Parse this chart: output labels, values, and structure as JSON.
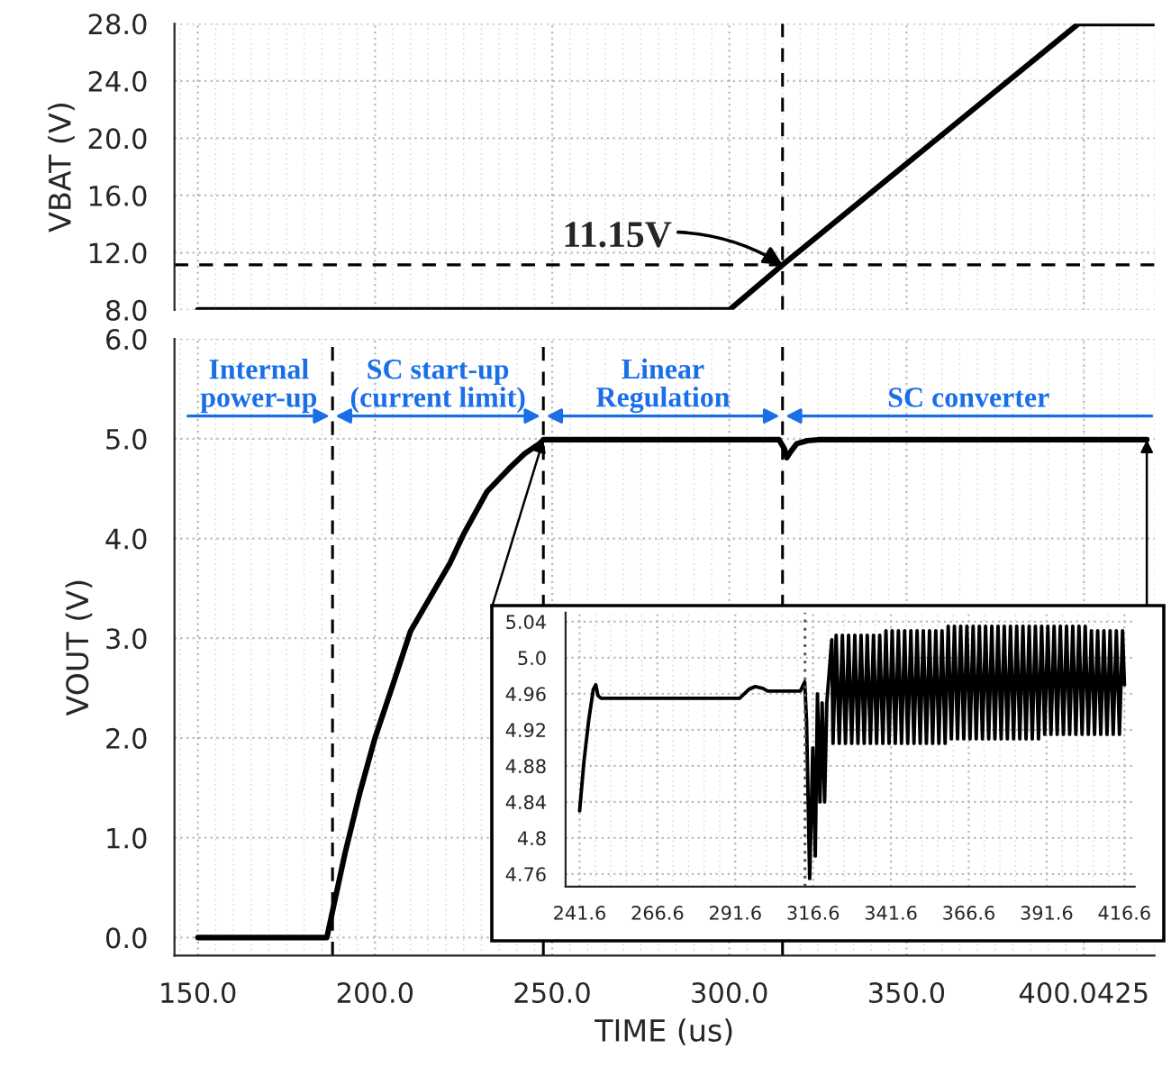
{
  "chart_data": [
    {
      "type": "line",
      "ylabel": "VBAT (V)",
      "tick_labels": "y",
      "grid": true,
      "line_style": "solid",
      "xlim": [
        143.4,
        420
      ],
      "xticks": [
        150,
        200,
        250,
        300,
        350,
        400.0425
      ],
      "ylim": [
        8,
        28
      ],
      "yticks": [
        {
          "value": 8,
          "label": "8.0"
        },
        {
          "value": 12,
          "label": "12.0"
        },
        {
          "value": 16,
          "label": "16.0"
        },
        {
          "value": 20,
          "label": "20.0"
        },
        {
          "value": 24,
          "label": "24.0"
        },
        {
          "value": 28,
          "label": "28.0"
        }
      ],
      "series": [
        {
          "color": "#000000",
          "x": [
            150,
            300,
            315,
            398.5,
            420
          ],
          "values": [
            8,
            8,
            11.15,
            28,
            28
          ]
        }
      ],
      "ref_lines": [
        {
          "axis": "x",
          "value": 315,
          "color": "#000000",
          "line_style": "dashed"
        },
        {
          "axis": "y",
          "value": 11.15,
          "color": "#000000",
          "line_style": "dashed"
        }
      ],
      "annotations": [
        {
          "text": "11.15V",
          "x": 315,
          "y": 11.15
        }
      ]
    },
    {
      "type": "line",
      "xlabel": "TIME (us)",
      "ylabel": "VOUT (V)",
      "grid": true,
      "line_style": "solid",
      "xlim": [
        143.4,
        420
      ],
      "xticks": [
        {
          "value": 150,
          "label": "150.0"
        },
        {
          "value": 200,
          "label": "200.0"
        },
        {
          "value": 250,
          "label": "250.0"
        },
        {
          "value": 300,
          "label": "300.0"
        },
        {
          "value": 350,
          "label": "350.0"
        },
        {
          "value": 400.0425,
          "label": "400.0425"
        }
      ],
      "ylim": [
        -0.18,
        6
      ],
      "yticks": [
        {
          "value": 0,
          "label": "0.0"
        },
        {
          "value": 1,
          "label": "1.0"
        },
        {
          "value": 2,
          "label": "2.0"
        },
        {
          "value": 3,
          "label": "3.0"
        },
        {
          "value": 4,
          "label": "4.0"
        },
        {
          "value": 5,
          "label": "5.0"
        },
        {
          "value": 6,
          "label": "6.0"
        }
      ],
      "series": [
        {
          "color": "#000000",
          "x": [
            150,
            186.4,
            191.5,
            195.7,
            199.9,
            205,
            210,
            221.1,
            225.1,
            231.6,
            237.8,
            242.2,
            246.4,
            247.5,
            314,
            315.5,
            316.2,
            317.5,
            319,
            322,
            325,
            417.8
          ],
          "values": [
            0,
            0,
            0.84,
            1.45,
            1.99,
            2.53,
            3.07,
            3.75,
            4.05,
            4.47,
            4.7,
            4.85,
            4.95,
            4.99,
            4.99,
            4.9,
            4.81,
            4.88,
            4.95,
            4.98,
            4.99,
            4.99
          ]
        }
      ],
      "ref_lines": [
        {
          "axis": "x",
          "value": 188,
          "color": "#000000",
          "line_style": "dashed"
        },
        {
          "axis": "x",
          "value": 247.5,
          "color": "#000000",
          "line_style": "dashed"
        },
        {
          "axis": "x",
          "value": 315,
          "color": "#000000",
          "line_style": "dashed"
        }
      ],
      "annotations": [
        "Internal\npower-up",
        "SC start-up\n(current limit)",
        "Linear\nRegulation",
        "SC converter"
      ]
    },
    {
      "type": "line",
      "grid": true,
      "line_style": "solid",
      "xlim": [
        237.1,
        419.9
      ],
      "xticks": [
        241.6,
        266.6,
        291.6,
        316.6,
        341.6,
        366.6,
        391.6,
        416.6
      ],
      "ylim": [
        4.746,
        5.05
      ],
      "yticks": [
        4.76,
        {
          "value": 4.8,
          "label": "4.8"
        },
        4.84,
        4.88,
        4.92,
        4.96,
        {
          "value": 5.0,
          "label": "5.0"
        },
        5.04
      ],
      "series": [
        {
          "color": "#000000",
          "x": [
            241.6,
            243,
            244.5,
            246,
            246.8,
            247.5,
            248.5,
            293,
            296,
            298,
            300.5,
            302,
            312.5,
            313.9,
            314.5,
            315.5,
            316.5,
            317.3,
            318,
            318.8,
            319.5,
            320.3,
            321,
            322.6,
            323,
            324,
            325,
            326,
            327,
            328,
            329,
            330,
            331,
            332,
            333,
            334,
            335,
            336,
            337,
            338,
            339,
            340,
            341,
            342,
            343,
            344,
            345,
            346,
            347,
            348,
            349,
            350,
            351,
            352,
            353,
            354,
            355,
            356,
            357,
            358,
            359,
            360,
            361,
            362,
            363,
            364,
            365,
            366,
            367,
            368,
            369,
            370,
            371,
            372,
            373,
            374,
            375,
            376,
            377,
            378,
            379,
            380,
            381,
            382,
            383,
            384,
            385,
            386,
            387,
            388,
            389,
            390,
            391,
            392,
            393,
            394,
            395,
            396,
            397,
            398,
            399,
            400,
            401,
            402,
            403,
            404,
            405,
            406,
            407,
            408,
            409,
            410,
            411,
            412,
            413,
            414,
            415,
            416,
            416.6
          ],
          "values": [
            4.83,
            4.885,
            4.93,
            4.965,
            4.97,
            4.958,
            4.955,
            4.955,
            4.965,
            4.968,
            4.966,
            4.963,
            4.963,
            4.973,
            4.93,
            4.755,
            4.9,
            4.78,
            4.96,
            4.84,
            4.95,
            4.84,
            4.95,
            5.02,
            4.905,
            5.025,
            4.905,
            5.025,
            4.905,
            5.025,
            4.905,
            5.025,
            4.905,
            5.025,
            4.905,
            5.025,
            4.905,
            5.025,
            4.905,
            5.025,
            4.905,
            5.03,
            4.905,
            5.03,
            4.905,
            5.03,
            4.905,
            5.03,
            4.905,
            5.03,
            4.905,
            5.03,
            4.905,
            5.03,
            4.905,
            5.03,
            4.905,
            5.03,
            4.905,
            5.03,
            4.905,
            5.035,
            4.91,
            5.035,
            4.91,
            5.035,
            4.91,
            5.035,
            4.91,
            5.035,
            4.91,
            5.035,
            4.91,
            5.035,
            4.91,
            5.035,
            4.91,
            5.035,
            4.91,
            5.035,
            4.91,
            5.035,
            4.91,
            5.035,
            4.91,
            5.035,
            4.91,
            5.035,
            4.91,
            5.035,
            4.91,
            5.035,
            4.915,
            5.035,
            4.915,
            5.035,
            4.915,
            5.035,
            4.915,
            5.035,
            4.915,
            5.035,
            4.915,
            5.035,
            4.915,
            5.035,
            4.915,
            5.03,
            4.915,
            5.03,
            4.915,
            5.03,
            4.915,
            5.03,
            4.915,
            5.03,
            4.915,
            5.03,
            4.97
          ]
        }
      ],
      "ref_lines": [
        {
          "axis": "x",
          "value": 314,
          "color": "#555555",
          "line_style": "dotted"
        }
      ]
    }
  ]
}
